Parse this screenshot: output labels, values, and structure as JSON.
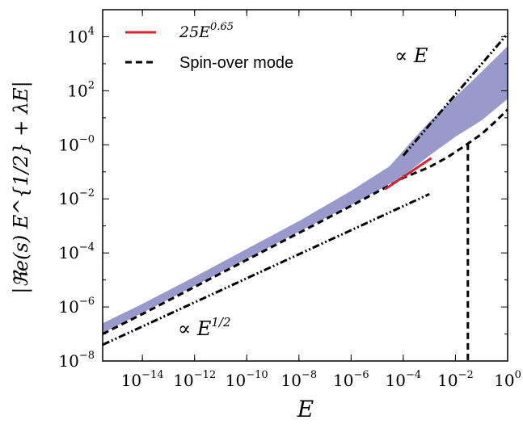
{
  "chart_data": {
    "type": "line",
    "title": "",
    "xlabel": "E",
    "ylabel": "|ℜe(s) E^{1/2} + λE|",
    "xscale": "log",
    "yscale": "log",
    "xlim": [
      3e-16,
      1
    ],
    "ylim": [
      1e-08,
      100000.0
    ],
    "grid": false,
    "legend_position": "top-left",
    "x_ticks": [
      {
        "exp": "-14",
        "value": 1e-14
      },
      {
        "exp": "-12",
        "value": 1e-12
      },
      {
        "exp": "-10",
        "value": 1e-10
      },
      {
        "exp": "-8",
        "value": 1e-08
      },
      {
        "exp": "-6",
        "value": 1e-06
      },
      {
        "exp": "-4",
        "value": 0.0001
      },
      {
        "exp": "-2",
        "value": 0.01
      },
      {
        "exp": "0",
        "value": 1
      }
    ],
    "y_ticks": [
      {
        "exp": "4",
        "value": 10000.0
      },
      {
        "exp": "2",
        "value": 100.0
      },
      {
        "exp": "-0",
        "value": 1
      },
      {
        "exp": "-2",
        "value": 0.01
      },
      {
        "exp": "-4",
        "value": 0.0001
      },
      {
        "exp": "-6",
        "value": 1e-06
      },
      {
        "exp": "-8",
        "value": 1e-08
      }
    ],
    "series": [
      {
        "name": "band",
        "style": "filled-band",
        "color": "#9999cc",
        "upper": {
          "x": [
            3e-16,
            1e-14,
            1e-12,
            1e-10,
            1e-08,
            1e-06,
            3e-05,
            0.0001,
            0.0003,
            0.001,
            0.01,
            0.1,
            1
          ],
          "y": [
            2.5e-07,
            1.3e-06,
            1.3e-05,
            0.00014,
            0.0015,
            0.02,
            0.16,
            0.6,
            2.0,
            7.0,
            60,
            500,
            4500
          ]
        },
        "lower": {
          "x": [
            3e-16,
            1e-14,
            1e-12,
            1e-10,
            1e-08,
            1e-06,
            1e-05,
            0.0001,
            0.001,
            0.01,
            0.1,
            1
          ],
          "y": [
            1.1e-07,
            6e-07,
            6e-06,
            6e-05,
            0.0006,
            0.006,
            0.02,
            0.07,
            0.4,
            2.0,
            8.0,
            50
          ]
        }
      },
      {
        "name": "Spin-over mode",
        "legend_label": "Spin-over mode",
        "style": "dashed",
        "color": "#000000",
        "x": [
          3e-16,
          1e-14,
          1e-12,
          1e-10,
          1e-08,
          1e-06,
          1e-05,
          0.0001,
          0.001,
          0.005,
          0.015,
          0.03,
          0.1,
          0.3,
          1
        ],
        "y": [
          1e-07,
          5.5e-07,
          5.5e-06,
          5.5e-05,
          0.00055,
          0.0055,
          0.018,
          0.06,
          0.15,
          0.35,
          0.7,
          1.1,
          2.5,
          6.5,
          20
        ]
      },
      {
        "name": "Spin-over mode drop",
        "style": "dashed",
        "color": "#000000",
        "x": [
          0.03,
          0.03
        ],
        "y": [
          1.1,
          1e-08
        ]
      },
      {
        "name": "fit",
        "legend_label": "25E^{0.65}",
        "style": "solid",
        "color": "#d9232f",
        "x": [
          2e-05,
          0.0012
        ],
        "y": [
          0.0227,
          0.324
        ]
      },
      {
        "name": "sqrt-reference",
        "style": "dash-dot-dot",
        "color": "#000000",
        "x": [
          3e-16,
          0.001
        ],
        "y": [
          4e-08,
          0.015
        ]
      },
      {
        "name": "linear-reference",
        "style": "dash-dot-dot",
        "color": "#000000",
        "x": [
          0.0001,
          1
        ],
        "y": [
          0.4,
          13000
        ]
      }
    ],
    "legend": [
      {
        "series": "fit",
        "base": "25E",
        "exp": "0.65",
        "color": "#d9232f",
        "style": "solid"
      },
      {
        "series": "Spin-over mode",
        "text": "Spin-over mode",
        "color": "#000000",
        "style": "dashed"
      }
    ],
    "annotations": [
      {
        "base": "∝ E",
        "exp": "1/2",
        "x": 1e-13,
        "y": 6e-08
      },
      {
        "base": "∝ E",
        "exp": "",
        "x": 0.0002,
        "y": 1000
      }
    ]
  }
}
